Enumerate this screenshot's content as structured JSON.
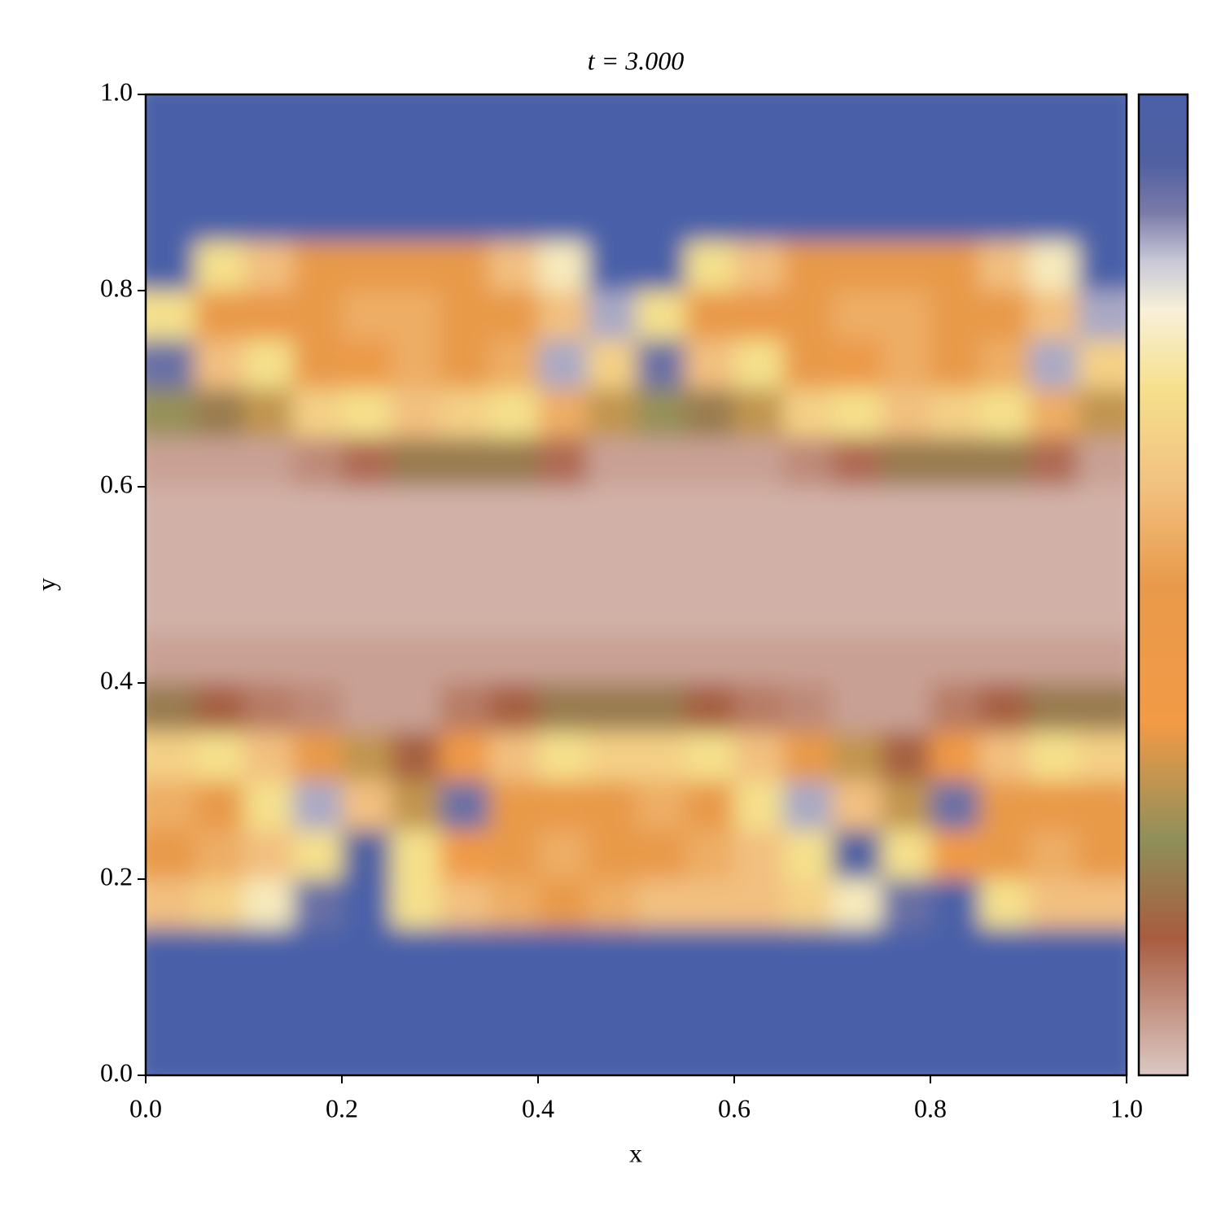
{
  "chart_data": {
    "type": "heatmap",
    "title": "t = 3.000",
    "xlabel": "x",
    "ylabel": "y",
    "xlim": [
      0,
      1
    ],
    "ylim": [
      0,
      1
    ],
    "xticks": [
      {
        "value": 0,
        "label": "0.0"
      },
      0.2,
      0.4,
      0.6,
      0.8,
      {
        "value": 1,
        "label": "1.0"
      }
    ],
    "yticks": [
      {
        "value": 0,
        "label": "0.0"
      },
      0.2,
      0.4,
      0.6,
      0.8,
      {
        "value": 1,
        "label": "1.0"
      }
    ],
    "origin": "upper",
    "zlim": [
      0,
      1
    ],
    "colormap": [
      {
        "value": 0,
        "color": "#dcc8c3"
      },
      {
        "value": 0.14,
        "color": "#a85c40"
      },
      {
        "value": 0.24,
        "color": "#8f8f5a"
      },
      {
        "value": 0.36,
        "color": "#f29a46"
      },
      {
        "value": 0.5,
        "color": "#e89a4a"
      },
      {
        "value": 0.6,
        "color": "#f2c080"
      },
      {
        "value": 0.7,
        "color": "#f5e08c"
      },
      {
        "value": 0.78,
        "color": "#f8f0d8"
      },
      {
        "value": 0.83,
        "color": "#c8c8d8"
      },
      {
        "value": 0.88,
        "color": "#7a7aa8"
      },
      {
        "value": 0.93,
        "color": "#5060a0"
      },
      {
        "value": 1,
        "color": "#4a60a8"
      }
    ],
    "z": [
      [
        1,
        1,
        1,
        1,
        1,
        1,
        1,
        1,
        1,
        1,
        1,
        1,
        1,
        1,
        1,
        1,
        1,
        1,
        1,
        1
      ],
      [
        1,
        1,
        1,
        1,
        1,
        1,
        1,
        1,
        1,
        1,
        1,
        1,
        1,
        1,
        1,
        1,
        1,
        1,
        1,
        1
      ],
      [
        1,
        1,
        1,
        1,
        1,
        1,
        1,
        1,
        1,
        1,
        1,
        1,
        1,
        1,
        1,
        1,
        1,
        1,
        1,
        1
      ],
      [
        1,
        0.7,
        0.6,
        0.5,
        0.5,
        0.5,
        0.5,
        0.6,
        0.75,
        1,
        1,
        0.7,
        0.6,
        0.5,
        0.5,
        0.5,
        0.5,
        0.6,
        0.75,
        1
      ],
      [
        0.7,
        0.5,
        0.35,
        0.5,
        0.55,
        0.55,
        0.5,
        0.5,
        0.6,
        0.85,
        0.7,
        0.5,
        0.35,
        0.5,
        0.55,
        0.55,
        0.5,
        0.5,
        0.6,
        0.85
      ],
      [
        0.9,
        0.6,
        0.7,
        0.5,
        0.45,
        0.55,
        0.5,
        0.55,
        0.85,
        0.65,
        0.9,
        0.6,
        0.7,
        0.5,
        0.45,
        0.55,
        0.5,
        0.55,
        0.85,
        0.65
      ],
      [
        0.25,
        0.2,
        0.3,
        0.65,
        0.7,
        0.6,
        0.65,
        0.7,
        0.55,
        0.3,
        0.25,
        0.2,
        0.3,
        0.65,
        0.7,
        0.6,
        0.65,
        0.7,
        0.55,
        0.3
      ],
      [
        0.05,
        0.05,
        0.05,
        0.08,
        0.12,
        0.2,
        0.2,
        0.2,
        0.12,
        0.05,
        0.05,
        0.05,
        0.05,
        0.08,
        0.12,
        0.2,
        0.2,
        0.2,
        0.12,
        0.05
      ],
      [
        0.03,
        0.03,
        0.03,
        0.03,
        0.03,
        0.03,
        0.03,
        0.03,
        0.03,
        0.03,
        0.03,
        0.03,
        0.03,
        0.03,
        0.03,
        0.03,
        0.03,
        0.03,
        0.03,
        0.03
      ],
      [
        0.03,
        0.03,
        0.03,
        0.03,
        0.03,
        0.03,
        0.03,
        0.03,
        0.03,
        0.03,
        0.03,
        0.03,
        0.03,
        0.03,
        0.03,
        0.03,
        0.03,
        0.03,
        0.03,
        0.03
      ],
      [
        0.03,
        0.03,
        0.03,
        0.03,
        0.03,
        0.03,
        0.03,
        0.03,
        0.03,
        0.03,
        0.03,
        0.03,
        0.03,
        0.03,
        0.03,
        0.03,
        0.03,
        0.03,
        0.03,
        0.03
      ],
      [
        0.05,
        0.05,
        0.05,
        0.05,
        0.05,
        0.05,
        0.05,
        0.05,
        0.05,
        0.05,
        0.05,
        0.05,
        0.05,
        0.05,
        0.05,
        0.05,
        0.05,
        0.05,
        0.05,
        0.05
      ],
      [
        0.2,
        0.15,
        0.1,
        0.08,
        0.05,
        0.05,
        0.1,
        0.15,
        0.2,
        0.2,
        0.2,
        0.15,
        0.1,
        0.08,
        0.05,
        0.05,
        0.1,
        0.15,
        0.2,
        0.2
      ],
      [
        0.65,
        0.7,
        0.6,
        0.5,
        0.3,
        0.15,
        0.4,
        0.6,
        0.7,
        0.65,
        0.65,
        0.7,
        0.6,
        0.5,
        0.3,
        0.15,
        0.4,
        0.6,
        0.7,
        0.65
      ],
      [
        0.55,
        0.5,
        0.7,
        0.85,
        0.6,
        0.3,
        0.9,
        0.5,
        0.35,
        0.5,
        0.55,
        0.5,
        0.7,
        0.85,
        0.6,
        0.3,
        0.9,
        0.5,
        0.35,
        0.5
      ],
      [
        0.5,
        0.55,
        0.6,
        0.7,
        0.95,
        0.7,
        0.4,
        0.5,
        0.55,
        0.5,
        0.5,
        0.55,
        0.6,
        0.7,
        0.95,
        0.7,
        0.4,
        0.5,
        0.55,
        0.5
      ],
      [
        0.6,
        0.65,
        0.75,
        0.9,
        1,
        0.7,
        0.6,
        0.55,
        0.5,
        0.55,
        0.6,
        0.6,
        0.6,
        0.65,
        0.75,
        0.9,
        1,
        0.7,
        0.6,
        0.6
      ],
      [
        1,
        1,
        1,
        1,
        1,
        1,
        1,
        1,
        1,
        1,
        1,
        1,
        1,
        1,
        1,
        1,
        1,
        1,
        1,
        1
      ],
      [
        1,
        1,
        1,
        1,
        1,
        1,
        1,
        1,
        1,
        1,
        1,
        1,
        1,
        1,
        1,
        1,
        1,
        1,
        1,
        1
      ],
      [
        1,
        1,
        1,
        1,
        1,
        1,
        1,
        1,
        1,
        1,
        1,
        1,
        1,
        1,
        1,
        1,
        1,
        1,
        1,
        1
      ]
    ]
  }
}
